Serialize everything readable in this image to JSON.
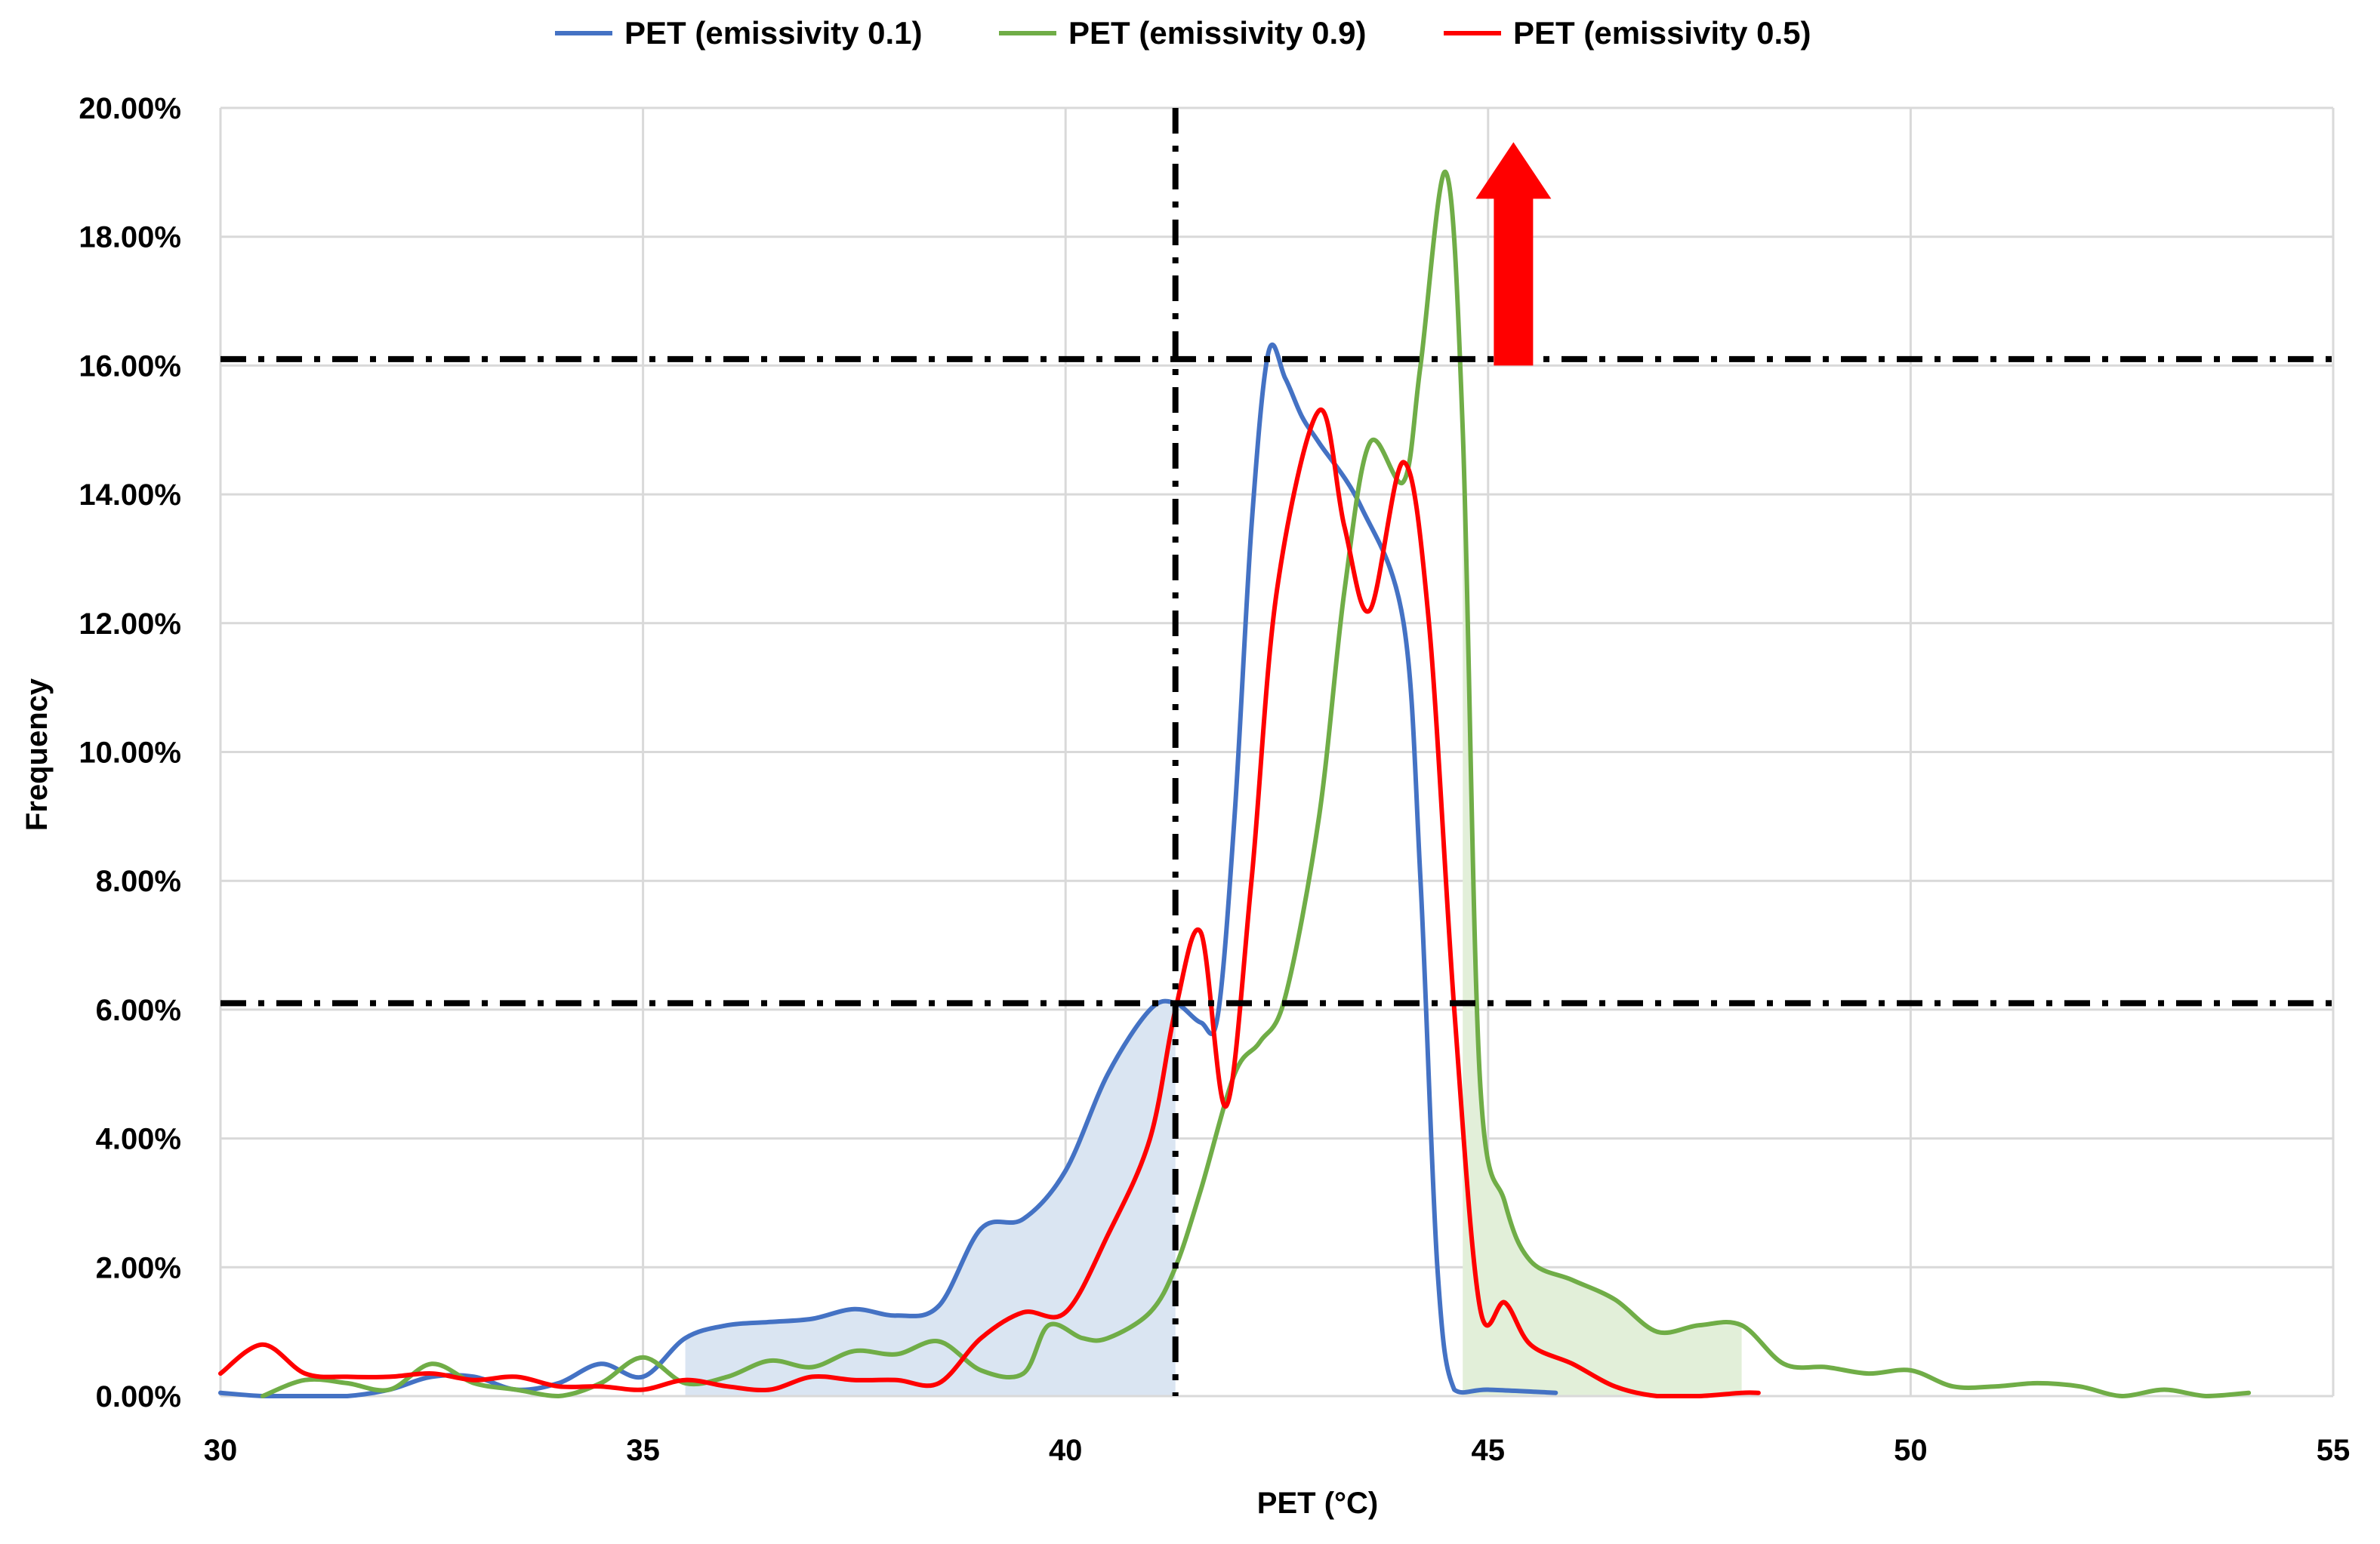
{
  "chart_data": {
    "type": "line",
    "title": "",
    "xlabel": "PET (°C)",
    "ylabel": "Frequency",
    "xlim": [
      30,
      55
    ],
    "ylim": [
      0,
      20
    ],
    "x_ticks": [
      "30",
      "35",
      "40",
      "45",
      "50",
      "55"
    ],
    "y_ticks": [
      "0.00%",
      "2.00%",
      "4.00%",
      "6.00%",
      "8.00%",
      "10.00%",
      "12.00%",
      "14.00%",
      "16.00%",
      "18.00%",
      "20.00%"
    ],
    "grid": "on",
    "legend_position": "top",
    "series": [
      {
        "name": "PET (emissivity 0.1)",
        "color": "#4472C4",
        "fill": "#DAE5F2",
        "fill_range": [
          35.5,
          41.3
        ],
        "points": [
          [
            30,
            0.05
          ],
          [
            30.5,
            0
          ],
          [
            31,
            0
          ],
          [
            31.5,
            0
          ],
          [
            32,
            0.1
          ],
          [
            32.5,
            0.3
          ],
          [
            33,
            0.3
          ],
          [
            33.5,
            0.1
          ],
          [
            34,
            0.2
          ],
          [
            34.5,
            0.5
          ],
          [
            35,
            0.3
          ],
          [
            35.5,
            0.9
          ],
          [
            36,
            1.1
          ],
          [
            36.5,
            1.15
          ],
          [
            37,
            1.2
          ],
          [
            37.5,
            1.35
          ],
          [
            38,
            1.25
          ],
          [
            38.5,
            1.4
          ],
          [
            39,
            2.6
          ],
          [
            39.5,
            2.75
          ],
          [
            40,
            3.5
          ],
          [
            40.5,
            5.0
          ],
          [
            41,
            6.0
          ],
          [
            41.3,
            6.1
          ],
          [
            41.6,
            5.8
          ],
          [
            41.8,
            5.9
          ],
          [
            42,
            9.0
          ],
          [
            42.2,
            13.5
          ],
          [
            42.4,
            16.2
          ],
          [
            42.6,
            15.8
          ],
          [
            42.8,
            15.2
          ],
          [
            43,
            14.8
          ],
          [
            43.5,
            13.8
          ],
          [
            44,
            12.0
          ],
          [
            44.2,
            8.0
          ],
          [
            44.4,
            2.0
          ],
          [
            44.6,
            0.1
          ],
          [
            45,
            0.1
          ],
          [
            45.8,
            0.05
          ]
        ]
      },
      {
        "name": "PET (emissivity 0.9)",
        "color": "#70AD47",
        "fill": "#E2EFD9",
        "fill_range": [
          44.7,
          48
        ],
        "points": [
          [
            30.5,
            0
          ],
          [
            31,
            0.25
          ],
          [
            31.5,
            0.2
          ],
          [
            32,
            0.1
          ],
          [
            32.5,
            0.5
          ],
          [
            33,
            0.2
          ],
          [
            33.5,
            0.1
          ],
          [
            34,
            0
          ],
          [
            34.5,
            0.2
          ],
          [
            35,
            0.6
          ],
          [
            35.5,
            0.2
          ],
          [
            36,
            0.3
          ],
          [
            36.5,
            0.55
          ],
          [
            37,
            0.45
          ],
          [
            37.5,
            0.7
          ],
          [
            38,
            0.65
          ],
          [
            38.5,
            0.85
          ],
          [
            39,
            0.4
          ],
          [
            39.5,
            0.35
          ],
          [
            39.8,
            1.1
          ],
          [
            40.2,
            0.9
          ],
          [
            40.5,
            0.9
          ],
          [
            41,
            1.3
          ],
          [
            41.3,
            2.0
          ],
          [
            41.6,
            3.2
          ],
          [
            42,
            5.0
          ],
          [
            42.3,
            5.5
          ],
          [
            42.6,
            6.2
          ],
          [
            43,
            9.0
          ],
          [
            43.3,
            12.5
          ],
          [
            43.6,
            14.8
          ],
          [
            44,
            14.2
          ],
          [
            44.2,
            16.0
          ],
          [
            44.5,
            19.0
          ],
          [
            44.7,
            15.0
          ],
          [
            44.9,
            5.0
          ],
          [
            45.2,
            3.0
          ],
          [
            45.5,
            2.1
          ],
          [
            46,
            1.8
          ],
          [
            46.5,
            1.5
          ],
          [
            47,
            1.0
          ],
          [
            47.5,
            1.1
          ],
          [
            48,
            1.1
          ],
          [
            48.5,
            0.5
          ],
          [
            49,
            0.45
          ],
          [
            49.5,
            0.35
          ],
          [
            50,
            0.4
          ],
          [
            50.5,
            0.15
          ],
          [
            51,
            0.15
          ],
          [
            51.5,
            0.2
          ],
          [
            52,
            0.15
          ],
          [
            52.5,
            0
          ],
          [
            53,
            0.1
          ],
          [
            53.5,
            0
          ],
          [
            54,
            0.05
          ]
        ]
      },
      {
        "name": "PET (emissivity 0.5)",
        "color": "#FF0000",
        "points": [
          [
            30,
            0.35
          ],
          [
            30.5,
            0.8
          ],
          [
            31,
            0.35
          ],
          [
            31.5,
            0.3
          ],
          [
            32,
            0.3
          ],
          [
            32.5,
            0.35
          ],
          [
            33,
            0.25
          ],
          [
            33.5,
            0.3
          ],
          [
            34,
            0.15
          ],
          [
            34.5,
            0.15
          ],
          [
            35,
            0.1
          ],
          [
            35.5,
            0.25
          ],
          [
            36,
            0.15
          ],
          [
            36.5,
            0.1
          ],
          [
            37,
            0.3
          ],
          [
            37.5,
            0.25
          ],
          [
            38,
            0.25
          ],
          [
            38.5,
            0.2
          ],
          [
            39,
            0.9
          ],
          [
            39.5,
            1.3
          ],
          [
            40,
            1.3
          ],
          [
            40.5,
            2.5
          ],
          [
            41,
            4.0
          ],
          [
            41.3,
            6.0
          ],
          [
            41.6,
            7.2
          ],
          [
            41.9,
            4.5
          ],
          [
            42.2,
            8.0
          ],
          [
            42.5,
            12.5
          ],
          [
            43,
            15.3
          ],
          [
            43.3,
            13.5
          ],
          [
            43.6,
            12.2
          ],
          [
            44,
            14.5
          ],
          [
            44.3,
            12.0
          ],
          [
            44.6,
            6.0
          ],
          [
            44.9,
            1.4
          ],
          [
            45.2,
            1.45
          ],
          [
            45.5,
            0.8
          ],
          [
            46,
            0.5
          ],
          [
            46.5,
            0.15
          ],
          [
            47,
            0
          ],
          [
            47.5,
            0
          ],
          [
            48,
            0.05
          ],
          [
            48.2,
            0.05
          ]
        ]
      }
    ],
    "reference_lines": {
      "vertical_x": 41.3,
      "horizontal_y": [
        16.1,
        6.1
      ],
      "style": "dash-dot",
      "color": "#000000"
    },
    "annotation_arrow": {
      "x": 45.3,
      "y_from": 16.0,
      "y_to": 19.0,
      "color": "#FF0000",
      "direction": "up"
    }
  }
}
